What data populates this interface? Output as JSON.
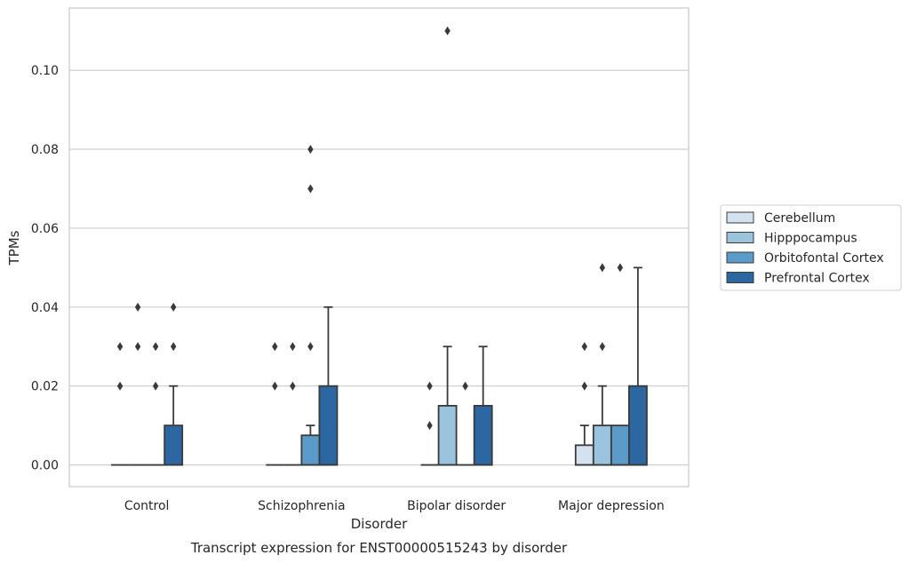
{
  "chart_data": {
    "type": "box",
    "caption": "Transcript expression for ENST00000515243 by disorder",
    "xlabel": "Disorder",
    "ylabel": "TPMs",
    "ylim": [
      -0.0055,
      0.1158
    ],
    "yticks": [
      0.0,
      0.02,
      0.04,
      0.06,
      0.08,
      0.1
    ],
    "ytick_labels": [
      "0.00",
      "0.02",
      "0.04",
      "0.06",
      "0.08",
      "0.10"
    ],
    "grid": "horizontal",
    "legend_position": "center-right",
    "categories": [
      "Control",
      "Schizophrenia",
      "Bipolar disorder",
      "Major depression"
    ],
    "series": [
      {
        "name": "Cerebellum",
        "color": "#d4e2ef",
        "boxes": [
          {
            "q1": 0,
            "median": 0,
            "q3": 0,
            "whisker_low": 0,
            "whisker_high": 0,
            "outliers": [
              0.02,
              0.03
            ]
          },
          {
            "q1": 0,
            "median": 0,
            "q3": 0,
            "whisker_low": 0,
            "whisker_high": 0,
            "outliers": [
              0.02,
              0.03
            ]
          },
          {
            "q1": 0,
            "median": 0,
            "q3": 0,
            "whisker_low": 0,
            "whisker_high": 0,
            "outliers": [
              0.01,
              0.02
            ]
          },
          {
            "q1": 0,
            "median": 0,
            "q3": 0.005,
            "whisker_low": 0,
            "whisker_high": 0.01,
            "outliers": [
              0.02,
              0.03
            ]
          }
        ]
      },
      {
        "name": "Hipppocampus",
        "color": "#9ac3dd",
        "boxes": [
          {
            "q1": 0,
            "median": 0,
            "q3": 0,
            "whisker_low": 0,
            "whisker_high": 0,
            "outliers": [
              0.03,
              0.04
            ]
          },
          {
            "q1": 0,
            "median": 0,
            "q3": 0,
            "whisker_low": 0,
            "whisker_high": 0,
            "outliers": [
              0.02,
              0.03
            ]
          },
          {
            "q1": 0,
            "median": 0,
            "q3": 0.015,
            "whisker_low": 0,
            "whisker_high": 0.03,
            "outliers": [
              0.11
            ]
          },
          {
            "q1": 0,
            "median": 0,
            "q3": 0.01,
            "whisker_low": 0,
            "whisker_high": 0.02,
            "outliers": [
              0.03,
              0.05
            ]
          }
        ]
      },
      {
        "name": "Orbitofontal Cortex",
        "color": "#5b9bc9",
        "boxes": [
          {
            "q1": 0,
            "median": 0,
            "q3": 0,
            "whisker_low": 0,
            "whisker_high": 0,
            "outliers": [
              0.02,
              0.03
            ]
          },
          {
            "q1": 0,
            "median": 0,
            "q3": 0.0075,
            "whisker_low": 0,
            "whisker_high": 0.01,
            "outliers": [
              0.03,
              0.07,
              0.08
            ]
          },
          {
            "q1": 0,
            "median": 0,
            "q3": 0,
            "whisker_low": 0,
            "whisker_high": 0,
            "outliers": [
              0.02
            ]
          },
          {
            "q1": 0,
            "median": 0,
            "q3": 0.01,
            "whisker_low": 0,
            "whisker_high": 0.01,
            "outliers": [
              0.05
            ]
          }
        ]
      },
      {
        "name": "Prefrontal Cortex",
        "color": "#2c67a1",
        "boxes": [
          {
            "q1": 0,
            "median": 0,
            "q3": 0.01,
            "whisker_low": 0,
            "whisker_high": 0.02,
            "outliers": [
              0.03,
              0.04
            ]
          },
          {
            "q1": 0,
            "median": 0,
            "q3": 0.02,
            "whisker_low": 0,
            "whisker_high": 0.04,
            "outliers": []
          },
          {
            "q1": 0,
            "median": 0,
            "q3": 0.015,
            "whisker_low": 0,
            "whisker_high": 0.03,
            "outliers": []
          },
          {
            "q1": 0,
            "median": 0,
            "q3": 0.02,
            "whisker_low": 0,
            "whisker_high": 0.05,
            "outliers": []
          }
        ]
      }
    ]
  }
}
